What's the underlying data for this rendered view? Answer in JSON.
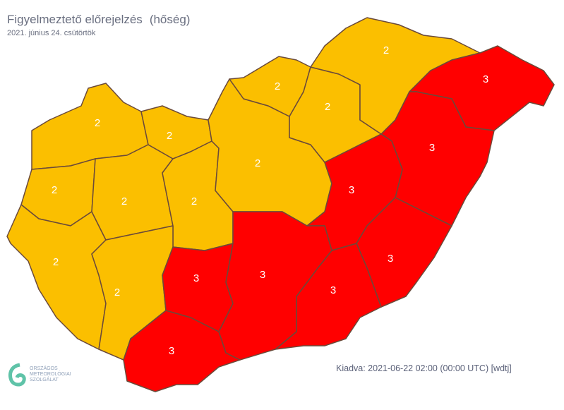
{
  "header": {
    "title": "Figyelmeztető előrejelzés",
    "subtitle": "(hőség)",
    "date": "2021. június 24. csütörtök"
  },
  "colors": {
    "level2": "#fbbf00",
    "level3": "#ff0000",
    "border": "#6b4a3a"
  },
  "regions": [
    {
      "level": "2"
    },
    {
      "level": "2"
    },
    {
      "level": "2"
    },
    {
      "level": "2"
    },
    {
      "level": "2"
    },
    {
      "level": "2"
    },
    {
      "level": "2"
    },
    {
      "level": "3"
    },
    {
      "level": "3"
    },
    {
      "level": "2"
    },
    {
      "level": "2"
    },
    {
      "level": "2"
    },
    {
      "level": "2"
    },
    {
      "level": "3"
    },
    {
      "level": "3"
    },
    {
      "level": "3"
    },
    {
      "level": "3"
    },
    {
      "level": "3"
    },
    {
      "level": "3"
    }
  ],
  "footer": {
    "issued": "Kiadva: 2021-06-22 02:00 (00:00 UTC) [wdtj]",
    "logo_lines": [
      "ORSZÁGOS",
      "METEOROLÓGIAI",
      "SZOLGÁLAT"
    ]
  }
}
